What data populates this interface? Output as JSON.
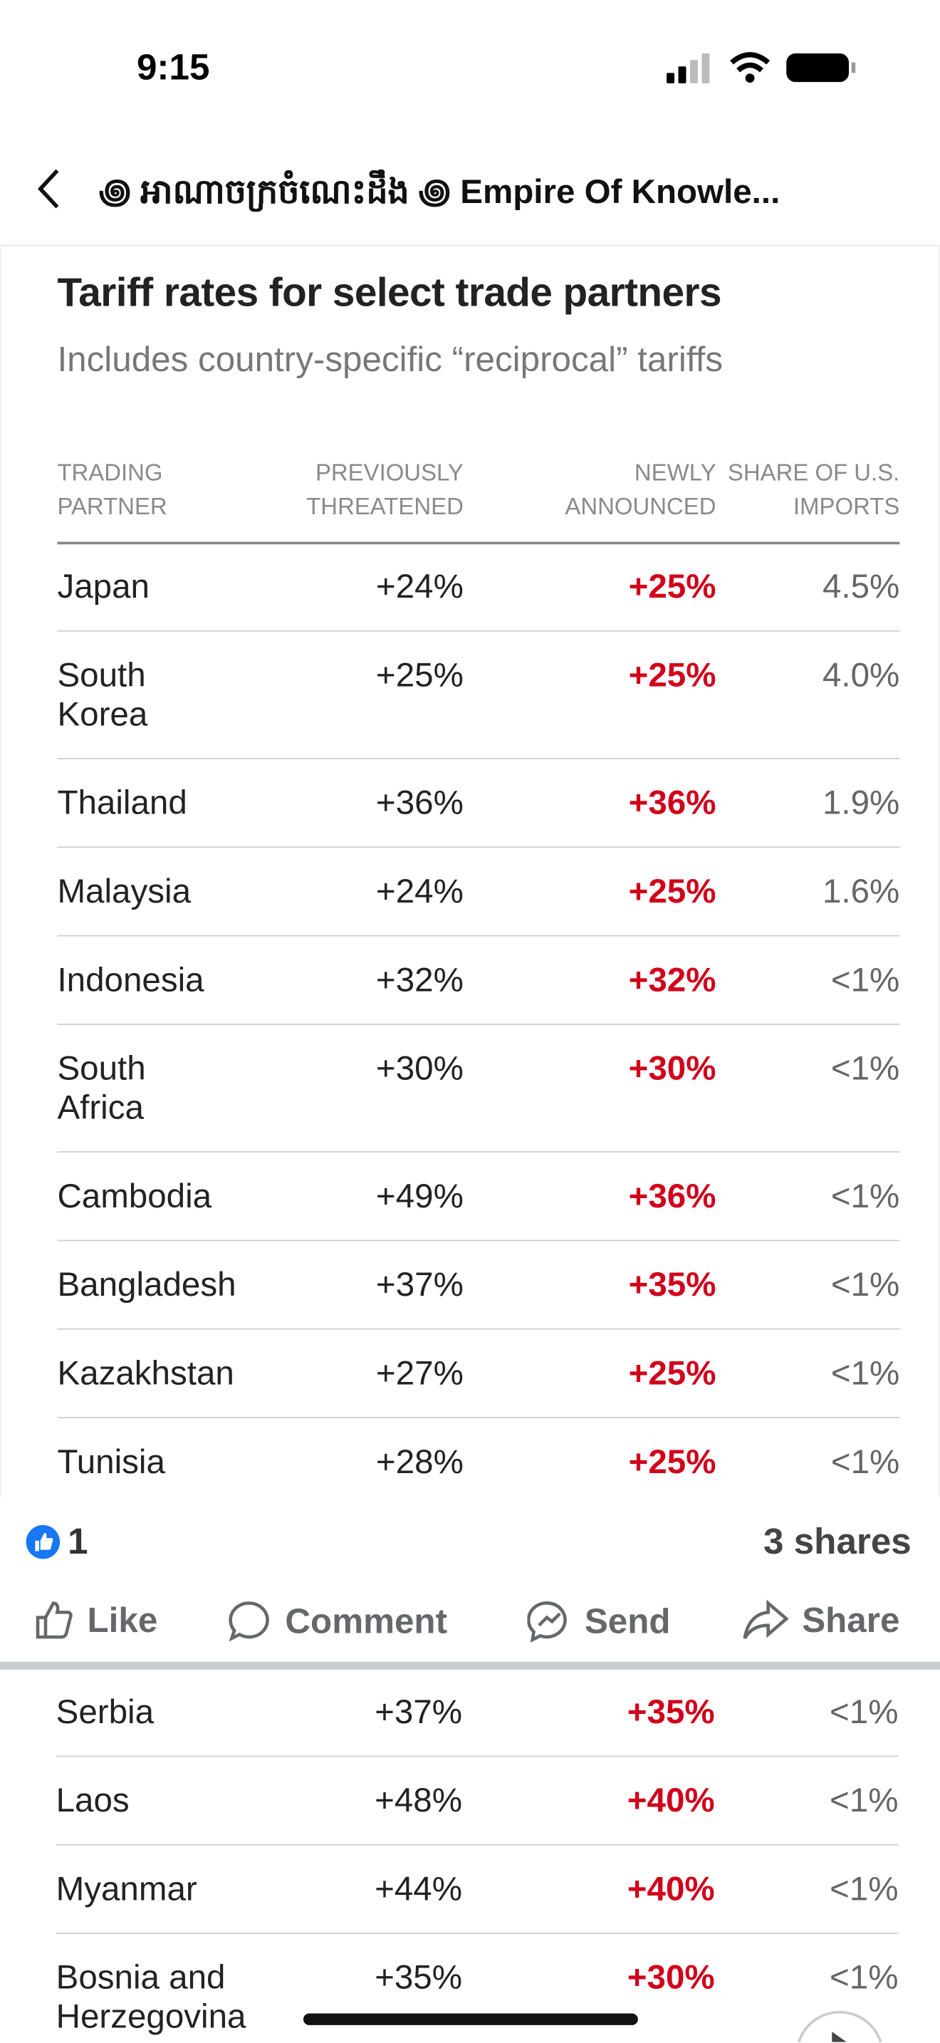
{
  "status_bar": {
    "time": "9:15"
  },
  "header": {
    "title": "꩜ អាណាចក្រចំណេះដឹង ꩜ Empire Of Knowle..."
  },
  "table": {
    "title": "Tariff rates for select trade partners",
    "subtitle": "Includes country-specific “reciprocal” tariffs",
    "columns": [
      "Trading partner",
      "Previously threatened",
      "Newly announced",
      "Share of U.S. imports"
    ],
    "rows": [
      [
        "Japan",
        "+24%",
        "+25%",
        "4.5%"
      ],
      [
        "South Korea",
        "+25%",
        "+25%",
        "4.0%"
      ],
      [
        "Thailand",
        "+36%",
        "+36%",
        "1.9%"
      ],
      [
        "Malaysia",
        "+24%",
        "+25%",
        "1.6%"
      ],
      [
        "Indonesia",
        "+32%",
        "+32%",
        "<1%"
      ],
      [
        "South Africa",
        "+30%",
        "+30%",
        "<1%"
      ],
      [
        "Cambodia",
        "+49%",
        "+36%",
        "<1%"
      ],
      [
        "Bangladesh",
        "+37%",
        "+35%",
        "<1%"
      ],
      [
        "Kazakhstan",
        "+27%",
        "+25%",
        "<1%"
      ],
      [
        "Tunisia",
        "+28%",
        "+25%",
        "<1%"
      ]
    ]
  },
  "post_footer": {
    "reactions": "1",
    "shares": "3 shares",
    "actions": [
      "Like",
      "Comment",
      "Send",
      "Share"
    ]
  },
  "table_continued": {
    "rows": [
      [
        "Serbia",
        "+37%",
        "+35%",
        "<1%"
      ],
      [
        "Laos",
        "+48%",
        "+40%",
        "<1%"
      ],
      [
        "Myanmar",
        "+44%",
        "+40%",
        "<1%"
      ],
      [
        "Bosnia and Herzegovina",
        "+35%",
        "+30%",
        "<1%"
      ]
    ]
  }
}
